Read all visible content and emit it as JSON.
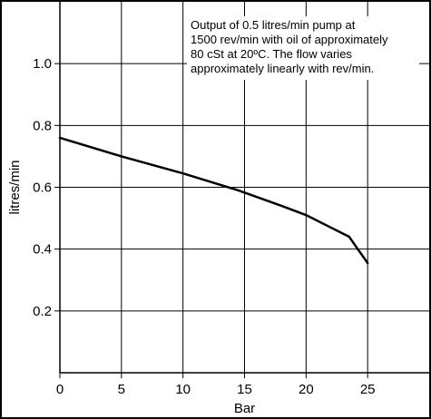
{
  "chart_data": {
    "type": "line",
    "xlabel": "Bar",
    "ylabel": "litres/min",
    "xlim": [
      0,
      30
    ],
    "ylim": [
      0,
      1.2
    ],
    "x_ticks": [
      0,
      5,
      10,
      15,
      20,
      25
    ],
    "y_ticks": [
      0.2,
      0.4,
      0.6,
      0.8,
      1.0
    ],
    "x_tick_labels": [
      "0",
      "5",
      "10",
      "15",
      "20",
      "25"
    ],
    "y_tick_labels": [
      "0.2",
      "0.4",
      "0.6",
      "0.8",
      "1.0"
    ],
    "grid": true,
    "annotation": [
      "Output of 0.5 litres/min pump at",
      "1500 rev/min with oil of approximately",
      "80 cSt at 20ºC. The flow varies",
      "approximately linearly with rev/min."
    ],
    "series": [
      {
        "x": [
          0,
          5,
          10,
          14.5,
          18,
          20,
          22,
          23.5,
          24.2,
          25
        ],
        "y": [
          0.76,
          0.7,
          0.645,
          0.59,
          0.54,
          0.51,
          0.47,
          0.44,
          0.4,
          0.355
        ]
      }
    ]
  }
}
